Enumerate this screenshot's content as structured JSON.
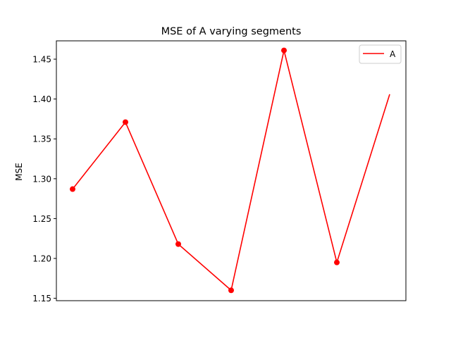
{
  "chart_data": {
    "type": "line",
    "title": "MSE of A varying segments",
    "xlabel": "",
    "ylabel": "MSE",
    "ylim": [
      1.147,
      1.473
    ],
    "yticks": [
      1.15,
      1.2,
      1.25,
      1.3,
      1.35,
      1.4,
      1.45
    ],
    "ytick_labels": [
      "1.15",
      "1.20",
      "1.25",
      "1.30",
      "1.35",
      "1.40",
      "1.45"
    ],
    "xticks_visible": false,
    "grid": false,
    "legend_position": "top-right",
    "x": [
      0,
      1,
      2,
      3,
      4,
      5,
      6
    ],
    "series": [
      {
        "name": "A",
        "color": "#ff0000",
        "values": [
          1.287,
          1.371,
          1.218,
          1.16,
          1.461,
          1.195,
          1.406
        ],
        "markers": [
          true,
          true,
          true,
          true,
          true,
          true,
          false
        ]
      }
    ]
  }
}
